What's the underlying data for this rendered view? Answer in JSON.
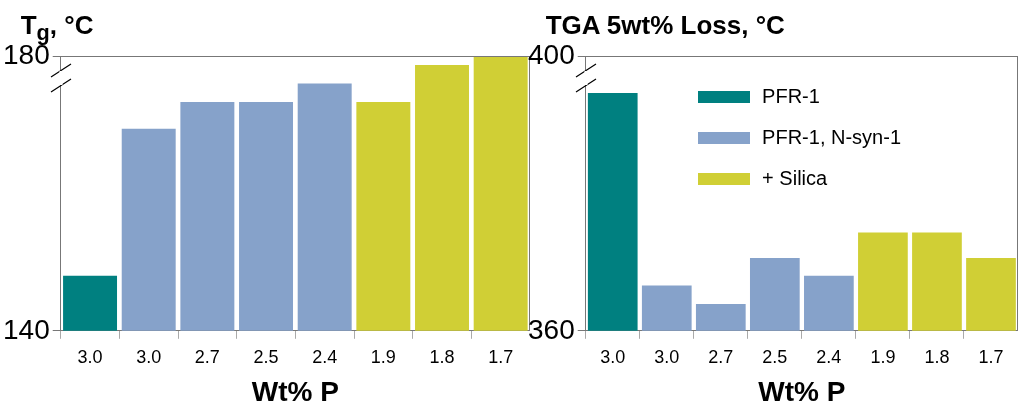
{
  "chart_data": [
    {
      "type": "bar",
      "title": "T$_{g}$, °C",
      "xlabel": "Wt% P",
      "categories": [
        "3.0",
        "3.0",
        "2.7",
        "2.5",
        "2.4",
        "1.9",
        "1.8",
        "1.7"
      ],
      "series": [
        {
          "color": "#008080",
          "values": [
            148,
            null,
            null,
            null,
            null,
            null,
            null,
            null
          ]
        },
        {
          "color": "#86a2ca",
          "values": [
            null,
            169.4,
            173.3,
            173.3,
            176,
            null,
            null,
            null
          ]
        },
        {
          "color": "#d0cf35",
          "values": [
            null,
            null,
            null,
            null,
            null,
            173.3,
            178.7,
            180
          ]
        }
      ],
      "ylim": [
        140,
        180
      ],
      "yticks": [
        140,
        180
      ],
      "legend": false
    },
    {
      "type": "bar",
      "title": "TGA 5wt% Loss, °C",
      "xlabel": "Wt% P",
      "categories": [
        "3.0",
        "3.0",
        "2.7",
        "2.5",
        "2.4",
        "1.9",
        "1.8",
        "1.7"
      ],
      "series": [
        {
          "name": "PFR-1",
          "color": "#008080",
          "values": [
            394.6,
            null,
            null,
            null,
            null,
            null,
            null,
            null
          ]
        },
        {
          "name": "PFR-1, N-syn-1",
          "color": "#86a2ca",
          "values": [
            null,
            366.6,
            363.9,
            370.6,
            368,
            null,
            null,
            null
          ]
        },
        {
          "name": "+ Silica",
          "color": "#d0cf35",
          "values": [
            null,
            null,
            null,
            null,
            null,
            374.3,
            374.3,
            370.6
          ]
        }
      ],
      "ylim": [
        360,
        400
      ],
      "yticks": [
        360,
        400
      ],
      "legend": "top right"
    }
  ]
}
